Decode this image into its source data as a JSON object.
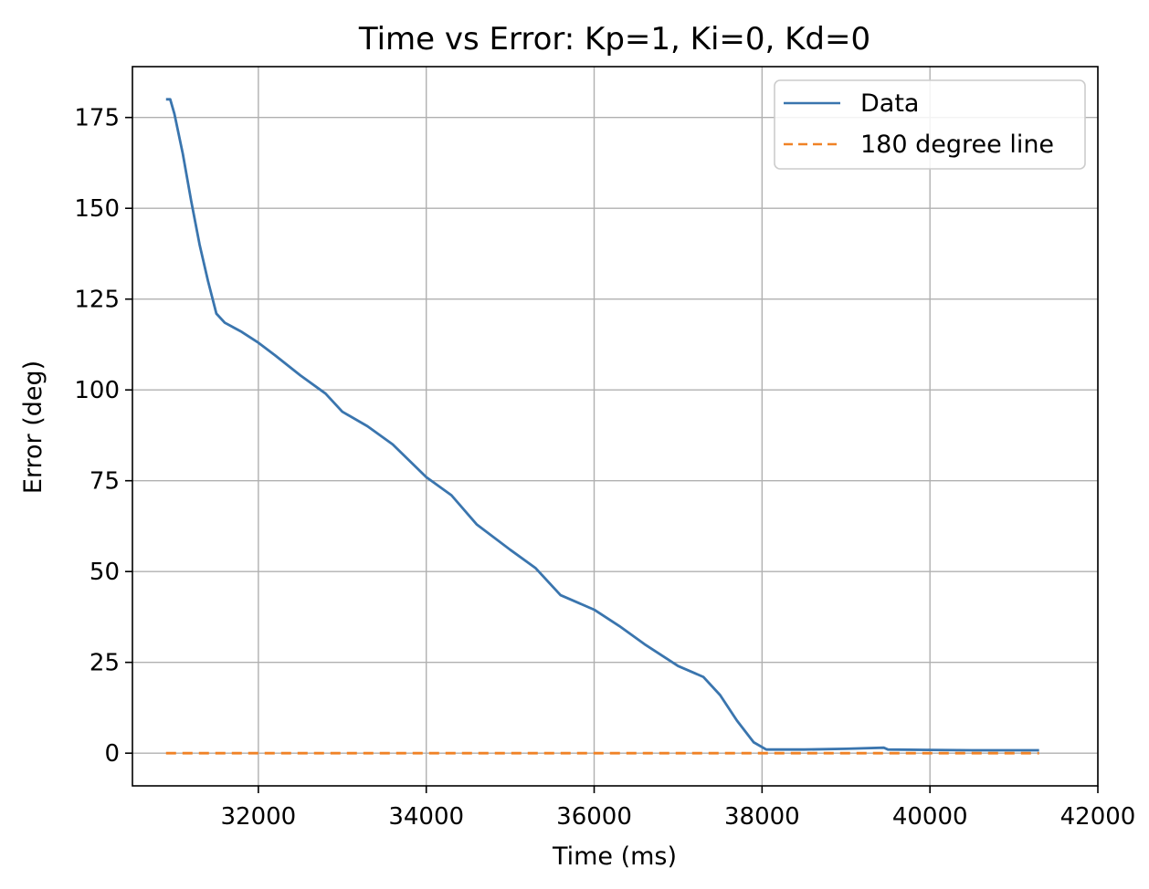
{
  "chart_data": {
    "type": "line",
    "title": "Time vs Error: Kp=1, Ki=0, Kd=0",
    "xlabel": "Time (ms)",
    "ylabel": "Error (deg)",
    "xlim": [
      30500,
      42000
    ],
    "ylim": [
      -9,
      189
    ],
    "xticks": [
      32000,
      34000,
      36000,
      38000,
      40000,
      42000
    ],
    "xtick_labels": [
      "32000",
      "34000",
      "36000",
      "38000",
      "40000",
      "42000"
    ],
    "yticks": [
      0,
      25,
      50,
      75,
      100,
      125,
      150,
      175
    ],
    "ytick_labels": [
      "0",
      "25",
      "50",
      "75",
      "100",
      "125",
      "150",
      "175"
    ],
    "grid": true,
    "legend_position": "top-right",
    "series": [
      {
        "name": "Data",
        "color": "#3a75ae",
        "style": "solid",
        "x": [
          30900,
          30950,
          31000,
          31100,
          31200,
          31300,
          31400,
          31500,
          31600,
          31800,
          32000,
          32200,
          32500,
          32800,
          33000,
          33300,
          33600,
          34000,
          34300,
          34600,
          35000,
          35300,
          35600,
          36000,
          36300,
          36600,
          37000,
          37300,
          37500,
          37700,
          37900,
          38050,
          38500,
          39000,
          39450,
          39500,
          40000,
          40500,
          41000,
          41300
        ],
        "y": [
          180,
          180,
          176,
          165,
          152,
          140,
          130,
          121,
          118.5,
          116,
          113,
          109.5,
          104,
          99,
          94,
          90,
          85,
          76,
          71,
          63,
          56,
          51,
          43.5,
          39.5,
          35,
          30,
          24,
          21,
          16,
          9,
          3,
          1,
          1,
          1.2,
          1.5,
          1,
          0.9,
          0.8,
          0.8,
          0.8
        ]
      },
      {
        "name": "180 degree line",
        "color": "#f08226",
        "style": "dashed",
        "x": [
          30900,
          41300
        ],
        "y": [
          0,
          0
        ]
      }
    ]
  }
}
